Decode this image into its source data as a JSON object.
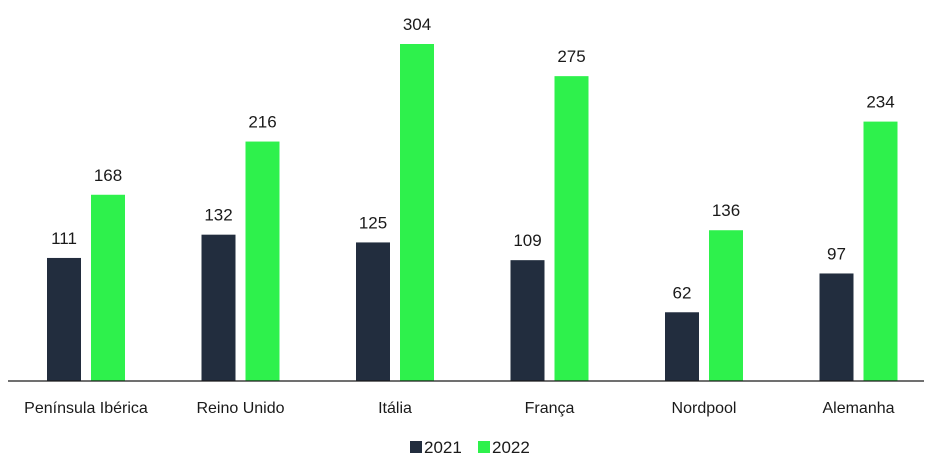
{
  "chart_data": {
    "type": "bar",
    "categories": [
      "Península Ibérica",
      "Reino Unido",
      "Itália",
      "França",
      "Nordpool",
      "Alemanha"
    ],
    "series": [
      {
        "name": "2021",
        "color": "#222d3e",
        "values": [
          111,
          132,
          125,
          109,
          62,
          97
        ]
      },
      {
        "name": "2022",
        "color": "#2ef14c",
        "values": [
          168,
          216,
          304,
          275,
          136,
          234
        ]
      }
    ],
    "ylim": [
      0,
      304
    ],
    "grid": false,
    "legend": "bottom-center",
    "data_labels": true
  }
}
